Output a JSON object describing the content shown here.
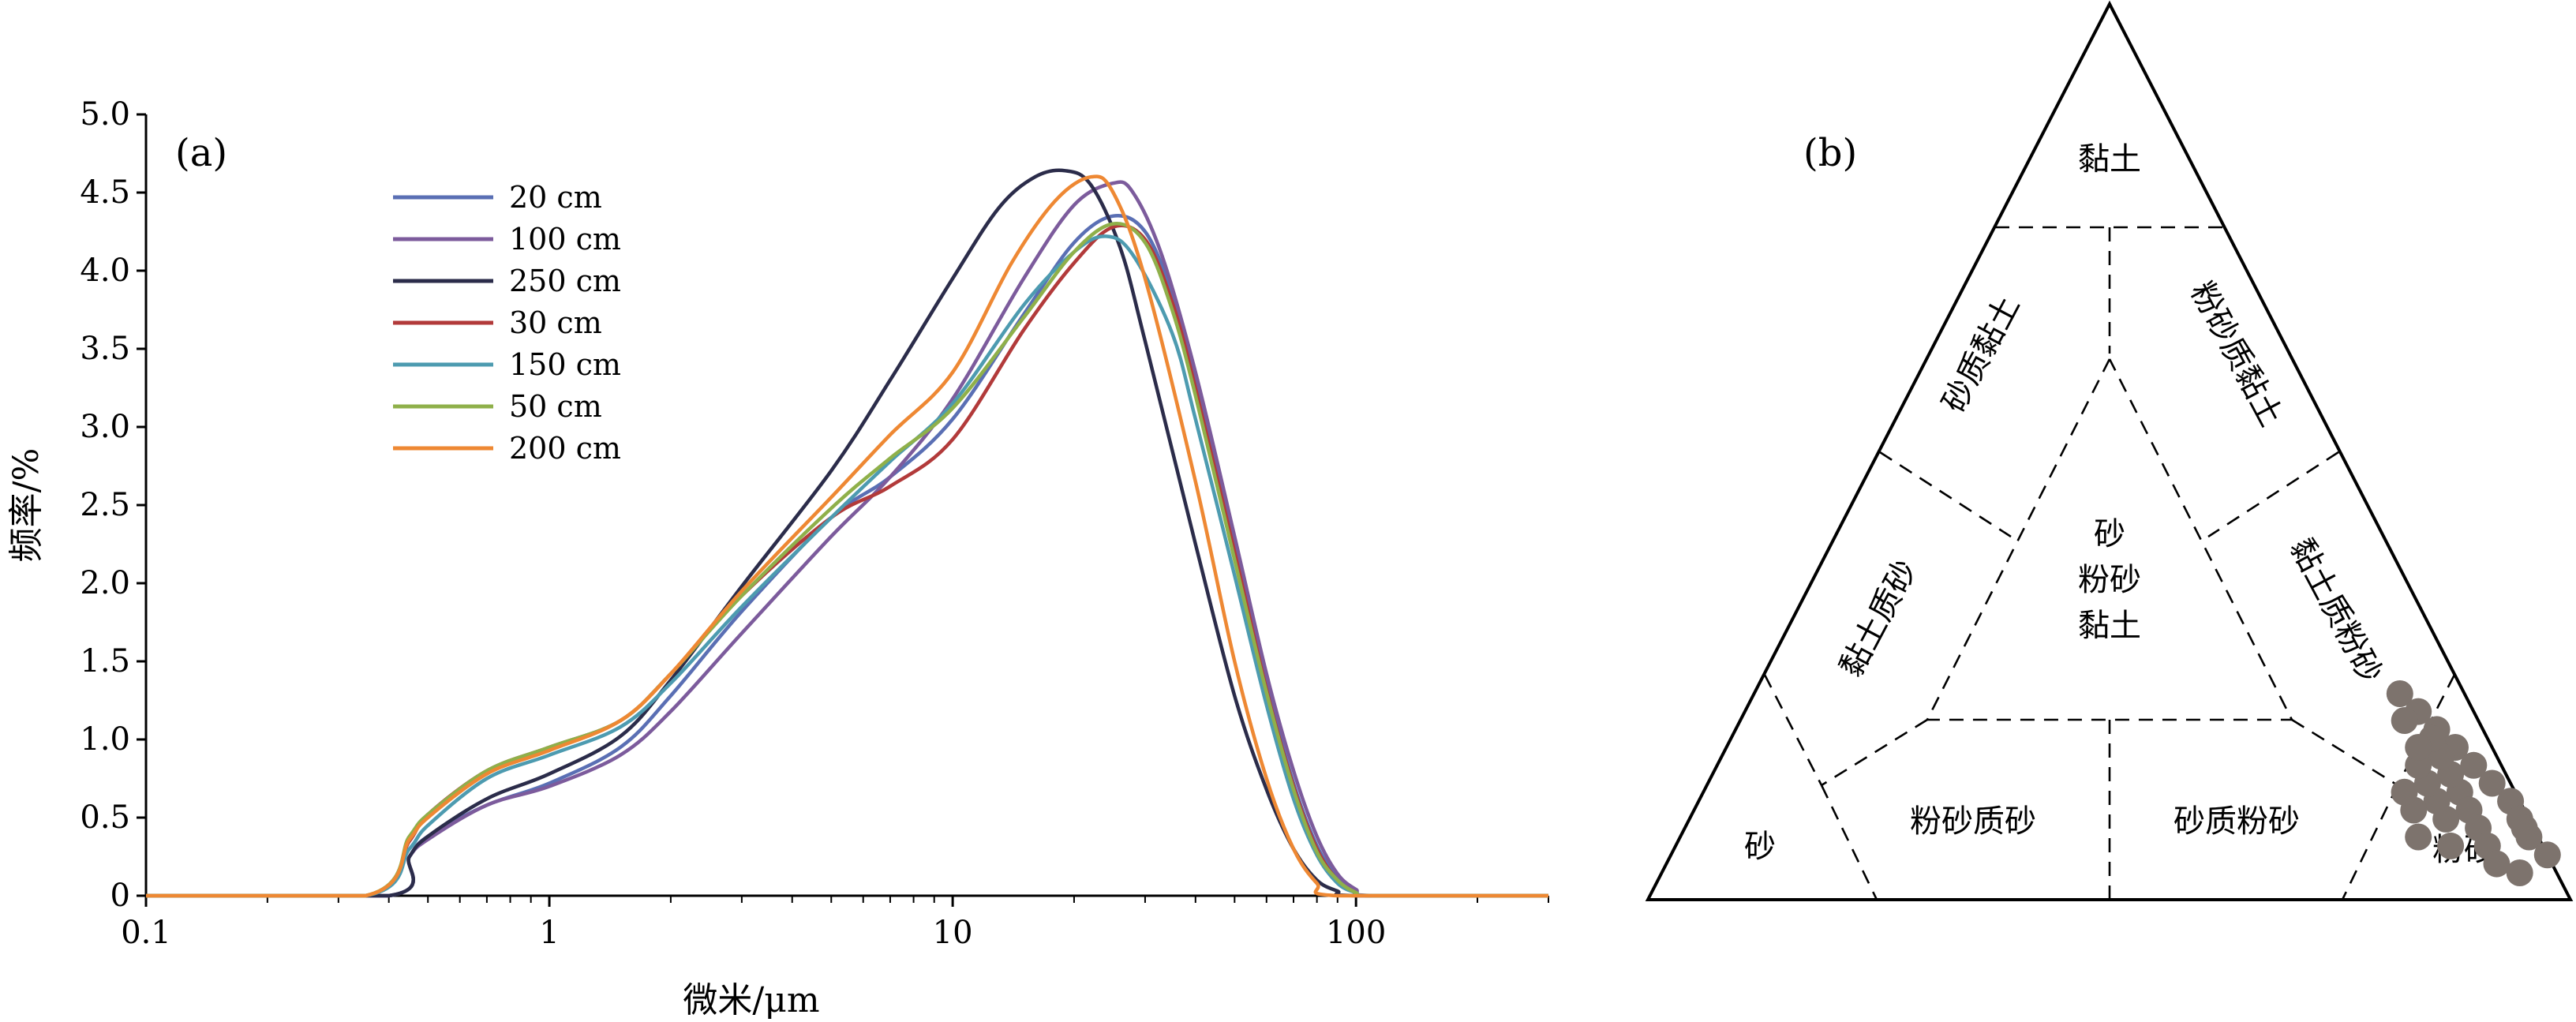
{
  "chart_data": [
    {
      "type": "line",
      "panel_label": "(a)",
      "xlabel": "微米/μm",
      "ylabel": "频率/%",
      "x_scale": "log",
      "xlim": [
        0.1,
        300
      ],
      "ylim": [
        0,
        5.0
      ],
      "x_ticks": [
        "0.1",
        "1",
        "10",
        "100"
      ],
      "y_ticks": [
        "0",
        "0.5",
        "1.0",
        "1.5",
        "2.0",
        "2.5",
        "3.0",
        "3.5",
        "4.0",
        "4.5",
        "5.0"
      ],
      "grid": false,
      "legend_position": "top-left",
      "series": [
        {
          "name": "20 cm",
          "color": "#5a6fb4",
          "x": [
            0.1,
            0.4,
            0.45,
            0.5,
            0.7,
            1,
            1.5,
            2,
            3,
            5,
            7,
            10,
            15,
            20,
            25,
            30,
            35,
            40,
            50,
            60,
            70,
            80,
            90,
            100,
            110,
            300
          ],
          "y": [
            0,
            0,
            0.25,
            0.38,
            0.58,
            0.72,
            0.95,
            1.28,
            1.82,
            2.42,
            2.68,
            3.05,
            3.72,
            4.18,
            4.35,
            4.25,
            3.85,
            3.3,
            2.25,
            1.35,
            0.72,
            0.32,
            0.12,
            0.03,
            0,
            0
          ]
        },
        {
          "name": "100 cm",
          "color": "#7c5b9c",
          "x": [
            0.1,
            0.4,
            0.45,
            0.5,
            0.7,
            1,
            1.5,
            2,
            3,
            5,
            7,
            10,
            15,
            20,
            25,
            28,
            33,
            40,
            50,
            60,
            70,
            80,
            90,
            100,
            110,
            300
          ],
          "y": [
            0,
            0,
            0.25,
            0.36,
            0.58,
            0.7,
            0.9,
            1.18,
            1.68,
            2.3,
            2.68,
            3.18,
            3.95,
            4.42,
            4.56,
            4.5,
            4.1,
            3.35,
            2.3,
            1.42,
            0.8,
            0.38,
            0.14,
            0.04,
            0,
            0
          ]
        },
        {
          "name": "250 cm",
          "color": "#2b2c4a",
          "x": [
            0.1,
            0.4,
            0.45,
            0.5,
            0.7,
            1,
            1.5,
            2,
            3,
            5,
            7,
            10,
            13,
            16,
            19,
            22,
            26,
            30,
            40,
            50,
            60,
            70,
            80,
            90,
            100,
            300
          ],
          "y": [
            0,
            0,
            0.25,
            0.38,
            0.62,
            0.78,
            1.02,
            1.38,
            1.98,
            2.72,
            3.3,
            3.95,
            4.4,
            4.6,
            4.64,
            4.55,
            4.15,
            3.55,
            2.25,
            1.28,
            0.68,
            0.3,
            0.1,
            0.03,
            0,
            0
          ]
        },
        {
          "name": "30 cm",
          "color": "#b23a3a",
          "x": [
            0.1,
            0.35,
            0.45,
            0.5,
            0.7,
            1,
            1.5,
            2,
            3,
            5,
            7,
            10,
            15,
            20,
            25,
            30,
            35,
            40,
            50,
            60,
            70,
            80,
            90,
            100,
            110,
            300
          ],
          "y": [
            0,
            0,
            0.35,
            0.52,
            0.8,
            0.95,
            1.12,
            1.42,
            1.92,
            2.42,
            2.62,
            2.92,
            3.62,
            4.05,
            4.28,
            4.2,
            3.8,
            3.25,
            2.2,
            1.32,
            0.7,
            0.3,
            0.1,
            0.02,
            0,
            0
          ]
        },
        {
          "name": "150 cm",
          "color": "#4d9bb0",
          "x": [
            0.1,
            0.35,
            0.45,
            0.5,
            0.7,
            1,
            1.5,
            2,
            3,
            5,
            7,
            10,
            15,
            20,
            24,
            28,
            35,
            40,
            50,
            60,
            70,
            80,
            90,
            100,
            110,
            300
          ],
          "y": [
            0,
            0,
            0.3,
            0.45,
            0.75,
            0.9,
            1.08,
            1.36,
            1.85,
            2.42,
            2.78,
            3.15,
            3.78,
            4.12,
            4.22,
            4.1,
            3.6,
            3.05,
            2.05,
            1.22,
            0.62,
            0.26,
            0.08,
            0.02,
            0,
            0
          ]
        },
        {
          "name": "50 cm",
          "color": "#8fb04a",
          "x": [
            0.1,
            0.35,
            0.45,
            0.5,
            0.7,
            1,
            1.5,
            2,
            3,
            5,
            7,
            10,
            15,
            20,
            25,
            30,
            35,
            40,
            50,
            60,
            70,
            80,
            90,
            100,
            110,
            300
          ],
          "y": [
            0,
            0,
            0.38,
            0.52,
            0.8,
            0.95,
            1.12,
            1.42,
            1.92,
            2.48,
            2.8,
            3.12,
            3.7,
            4.12,
            4.3,
            4.18,
            3.75,
            3.2,
            2.15,
            1.3,
            0.68,
            0.28,
            0.1,
            0.02,
            0,
            0
          ]
        },
        {
          "name": "200 cm",
          "color": "#ee8833",
          "x": [
            0.1,
            0.35,
            0.45,
            0.5,
            0.7,
            1,
            1.5,
            2,
            3,
            5,
            7,
            10,
            14,
            18,
            22,
            25,
            30,
            40,
            50,
            60,
            70,
            80,
            90,
            300
          ],
          "y": [
            0,
            0,
            0.36,
            0.5,
            0.78,
            0.93,
            1.12,
            1.42,
            1.95,
            2.55,
            2.95,
            3.35,
            4.05,
            4.45,
            4.6,
            4.5,
            3.95,
            2.65,
            1.5,
            0.75,
            0.3,
            0.08,
            0,
            0
          ]
        }
      ]
    },
    {
      "type": "scatter",
      "subtype": "ternary",
      "panel_label": "(b)",
      "regions": {
        "clay": "黏土",
        "sandy_clay": "砂质黏土",
        "silty_clay": "粉砂质黏土",
        "sand_silt_clay": [
          "砂",
          "粉砂",
          "黏土"
        ],
        "clayey_sand": "黏土质砂",
        "clayey_silt": "黏土质粉砂",
        "sand": "砂",
        "silty_sand": "粉砂质砂",
        "sandy_silt": "砂质粉砂",
        "silt": "粉砂"
      },
      "point_color": "#7d736d",
      "points_clay_silt": [
        [
          0.23,
          0.7
        ],
        [
          0.21,
          0.73
        ],
        [
          0.19,
          0.76
        ],
        [
          0.17,
          0.79
        ],
        [
          0.15,
          0.82
        ],
        [
          0.13,
          0.85
        ],
        [
          0.11,
          0.88
        ],
        [
          0.09,
          0.9
        ],
        [
          0.07,
          0.92
        ],
        [
          0.05,
          0.95
        ],
        [
          0.12,
          0.82
        ],
        [
          0.14,
          0.8
        ],
        [
          0.16,
          0.78
        ],
        [
          0.18,
          0.76
        ],
        [
          0.1,
          0.84
        ],
        [
          0.08,
          0.86
        ],
        [
          0.06,
          0.84
        ],
        [
          0.09,
          0.82
        ],
        [
          0.11,
          0.8
        ],
        [
          0.13,
          0.78
        ],
        [
          0.15,
          0.76
        ],
        [
          0.07,
          0.8
        ],
        [
          0.1,
          0.78
        ],
        [
          0.12,
          0.76
        ],
        [
          0.06,
          0.88
        ],
        [
          0.04,
          0.9
        ],
        [
          0.03,
          0.93
        ],
        [
          0.08,
          0.91
        ],
        [
          0.17,
          0.75
        ],
        [
          0.2,
          0.72
        ]
      ]
    }
  ]
}
